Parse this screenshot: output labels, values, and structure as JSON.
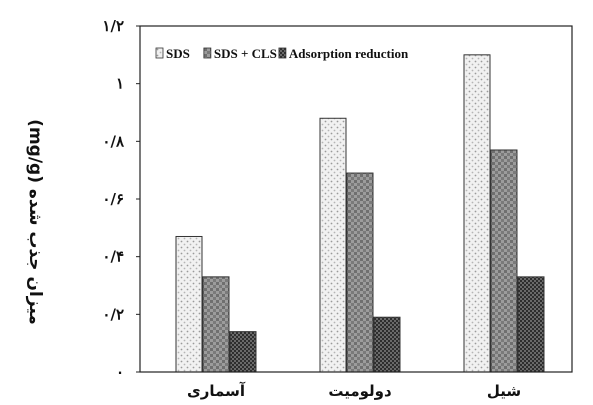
{
  "chart_data": {
    "type": "bar",
    "categories": [
      "آسماری",
      "دولومیت",
      "شیل"
    ],
    "series": [
      {
        "name": "SDS",
        "values": [
          0.47,
          0.88,
          1.1
        ],
        "color": "#e8e8e8",
        "pattern": "dots-light"
      },
      {
        "name": "SDS + CLS",
        "values": [
          0.33,
          0.69,
          0.77
        ],
        "color": "#8a8a8a",
        "pattern": "grid-medium"
      },
      {
        "name": "Adsorption reduction",
        "values": [
          0.14,
          0.19,
          0.33
        ],
        "color": "#555555",
        "pattern": "checker-dark"
      }
    ],
    "ylabel": "میزان جذب شده (mg/g)",
    "ylim": [
      0,
      1.2
    ],
    "yticks": [
      {
        "value": 0,
        "label": "۰"
      },
      {
        "value": 0.2,
        "label": "۰/۲"
      },
      {
        "value": 0.4,
        "label": "۰/۴"
      },
      {
        "value": 0.6,
        "label": "۰/۶"
      },
      {
        "value": 0.8,
        "label": "۰/۸"
      },
      {
        "value": 1.0,
        "label": "۱"
      },
      {
        "value": 1.2,
        "label": "۱/۲"
      }
    ],
    "grid": false,
    "legend_position": "top"
  }
}
